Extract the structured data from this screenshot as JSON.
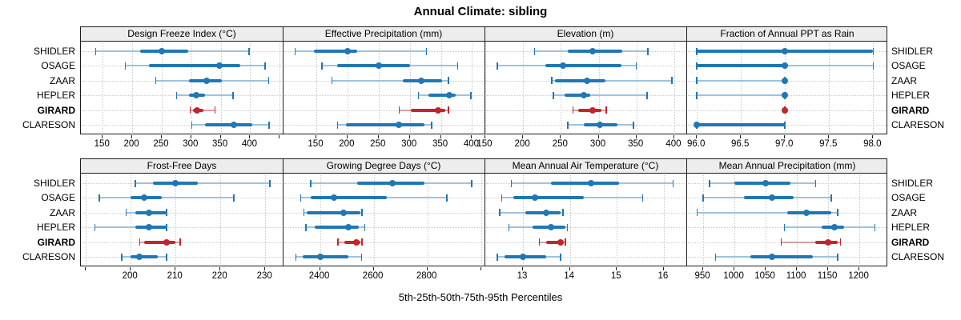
{
  "colors": {
    "series": "#2077b4",
    "series_light": "#9cc4df",
    "highlight": "#c0262d",
    "highlight_light": "#dc9fa2",
    "grid": "#cbcbcb",
    "strip_bg": "#ededed",
    "border": "#1c1c1c",
    "background": "#ffffff",
    "text": "#000000"
  },
  "chart_data": {
    "type": "scatter",
    "subtype": "percentile-interval-dotplot",
    "title": "Annual Climate: sibling",
    "caption": "5th-25th-50th-75th-95th Percentiles",
    "percentiles": [
      5,
      25,
      50,
      75,
      95
    ],
    "stations": [
      "SHIDLER",
      "OSAGE",
      "ZAAR",
      "HEPLER",
      "GIRARD",
      "CLARESON"
    ],
    "highlight_station": "GIRARD",
    "legend_position": "none",
    "grid": "dotted",
    "layout": "2 rows x 4 columns, free x scales, station dot = median, thick bar = 25th-75th, thin bar = 5th-95th",
    "panels": [
      {
        "title": "Design Freeze Index (°C)",
        "xlim": [
          113,
          455
        ],
        "ticks": [
          {
            "v": 150,
            "label": "150"
          },
          {
            "v": 200,
            "label": "200"
          },
          {
            "v": 250,
            "label": "250"
          },
          {
            "v": 300,
            "label": "300"
          },
          {
            "v": 350,
            "label": "350"
          },
          {
            "v": 400,
            "label": "400"
          },
          {
            "v": 450,
            "label": ""
          }
        ],
        "series": [
          [
            138,
            213,
            250,
            295,
            398
          ],
          [
            188,
            228,
            348,
            383,
            425
          ],
          [
            240,
            296,
            326,
            352,
            431
          ],
          [
            275,
            296,
            309,
            323,
            371
          ],
          [
            298,
            303,
            310,
            320,
            340
          ],
          [
            301,
            323,
            372,
            403,
            432
          ]
        ]
      },
      {
        "title": "Effective Precipitation (mm)",
        "xlim": [
          96,
          420
        ],
        "ticks": [
          {
            "v": 150,
            "label": "150"
          },
          {
            "v": 200,
            "label": "200"
          },
          {
            "v": 250,
            "label": "250"
          },
          {
            "v": 300,
            "label": "300"
          },
          {
            "v": 350,
            "label": "350"
          },
          {
            "v": 400,
            "label": "400"
          }
        ],
        "series": [
          [
            116,
            146,
            200,
            216,
            327
          ],
          [
            159,
            184,
            250,
            300,
            377
          ],
          [
            175,
            289,
            318,
            352,
            362
          ],
          [
            314,
            330,
            363,
            374,
            398
          ],
          [
            283,
            302,
            345,
            357,
            362
          ],
          [
            184,
            198,
            283,
            323,
            335
          ]
        ]
      },
      {
        "title": "Elevation (m)",
        "xlim": [
          149,
          416
        ],
        "ticks": [
          {
            "v": 150,
            "label": "150"
          },
          {
            "v": 200,
            "label": "200"
          },
          {
            "v": 250,
            "label": "250"
          },
          {
            "v": 300,
            "label": "300"
          },
          {
            "v": 350,
            "label": "350"
          },
          {
            "v": 400,
            "label": "400"
          }
        ],
        "series": [
          [
            215,
            259,
            292,
            331,
            365
          ],
          [
            166,
            229,
            253,
            330,
            350
          ],
          [
            238,
            242,
            285,
            309,
            397
          ],
          [
            240,
            255,
            280,
            289,
            364
          ],
          [
            266,
            273,
            292,
            304,
            310
          ],
          [
            259,
            280,
            302,
            325,
            346
          ]
        ]
      },
      {
        "title": "Fraction of Annual PPT as Rain",
        "xlim": [
          95.88,
          98.17
        ],
        "ticks": [
          {
            "v": 96.0,
            "label": "96.0"
          },
          {
            "v": 96.5,
            "label": "96.5"
          },
          {
            "v": 97.0,
            "label": "97.0"
          },
          {
            "v": 97.5,
            "label": "97.5"
          },
          {
            "v": 98.0,
            "label": "98.0"
          }
        ],
        "series": [
          [
            96,
            96,
            97,
            98,
            98
          ],
          [
            96,
            96,
            97,
            97,
            98
          ],
          [
            96,
            97,
            97,
            97,
            97
          ],
          [
            96,
            97,
            97,
            97,
            97
          ],
          [
            97,
            97,
            97,
            97,
            97
          ],
          [
            96,
            96,
            96,
            97,
            97
          ]
        ]
      },
      {
        "title": "Frost-Free Days",
        "xlim": [
          188.9,
          233.9
        ],
        "ticks": [
          {
            "v": 190,
            "label": ""
          },
          {
            "v": 200,
            "label": "200"
          },
          {
            "v": 210,
            "label": "210"
          },
          {
            "v": 220,
            "label": "220"
          },
          {
            "v": 230,
            "label": "230"
          }
        ],
        "series": [
          [
            201,
            205,
            210,
            215,
            231
          ],
          [
            193,
            200,
            203,
            207,
            223
          ],
          [
            199,
            201,
            204,
            208,
            208
          ],
          [
            192,
            201,
            204,
            208,
            208
          ],
          [
            202,
            203,
            208,
            210,
            211
          ],
          [
            198,
            200,
            202,
            206,
            208
          ]
        ]
      },
      {
        "title": "Growing Degree Days (°C)",
        "xlim": [
          2261,
          3013
        ],
        "ticks": [
          {
            "v": 2400,
            "label": "2400"
          },
          {
            "v": 2600,
            "label": "2600"
          },
          {
            "v": 2800,
            "label": "2800"
          },
          {
            "v": 3000,
            "label": ""
          }
        ],
        "series": [
          [
            2365,
            2540,
            2670,
            2790,
            2965
          ],
          [
            2328,
            2365,
            2452,
            2650,
            2873
          ],
          [
            2340,
            2350,
            2488,
            2550,
            2556
          ],
          [
            2348,
            2380,
            2505,
            2545,
            2567
          ],
          [
            2467,
            2490,
            2536,
            2550,
            2556
          ],
          [
            2310,
            2335,
            2400,
            2505,
            2555
          ]
        ]
      },
      {
        "title": "Mean Annual Air Temperature (°C)",
        "xlim": [
          12.18,
          16.48
        ],
        "ticks": [
          {
            "v": 13,
            "label": "13"
          },
          {
            "v": 14,
            "label": "14"
          },
          {
            "v": 15,
            "label": "15"
          },
          {
            "v": 16,
            "label": "16"
          }
        ],
        "series": [
          [
            12.75,
            13.6,
            14.45,
            15.05,
            16.2
          ],
          [
            12.55,
            12.8,
            13.25,
            14.3,
            15.55
          ],
          [
            12.5,
            13.05,
            13.5,
            13.8,
            13.85
          ],
          [
            12.7,
            13.2,
            13.6,
            13.9,
            13.95
          ],
          [
            13.35,
            13.5,
            13.8,
            13.85,
            13.9
          ],
          [
            12.45,
            12.6,
            13.0,
            13.5,
            13.8
          ]
        ]
      },
      {
        "title": "Mean Annual Precipitation (mm)",
        "xlim": [
          923,
          1246
        ],
        "ticks": [
          {
            "v": 950,
            "label": "950"
          },
          {
            "v": 1000,
            "label": "1000"
          },
          {
            "v": 1050,
            "label": "1050"
          },
          {
            "v": 1100,
            "label": "1100"
          },
          {
            "v": 1150,
            "label": "1150"
          },
          {
            "v": 1200,
            "label": "1200"
          }
        ],
        "series": [
          [
            960,
            1000,
            1050,
            1090,
            1130
          ],
          [
            950,
            1015,
            1060,
            1095,
            1155
          ],
          [
            940,
            1085,
            1115,
            1155,
            1165
          ],
          [
            1080,
            1140,
            1160,
            1175,
            1225
          ],
          [
            1075,
            1130,
            1150,
            1165,
            1170
          ],
          [
            970,
            1025,
            1060,
            1125,
            1165
          ]
        ]
      }
    ]
  }
}
